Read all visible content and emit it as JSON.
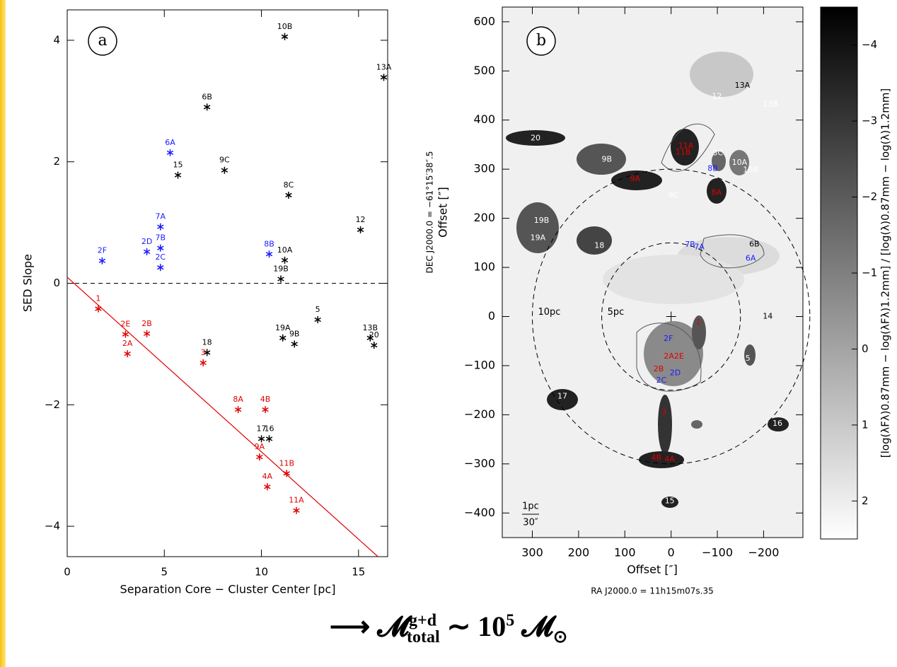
{
  "chart_data": [
    {
      "type": "scatter",
      "panel_label": "a",
      "x_label": "Separation Core − Cluster Center [pc]",
      "y_label": "SED Slope",
      "xlim": [
        0,
        16.5
      ],
      "ylim": [
        -4.5,
        4.5
      ],
      "xticks": [
        0,
        5,
        10,
        15
      ],
      "yticks": [
        {
          "value": -4,
          "label": "−4"
        },
        {
          "value": -2,
          "label": "−2"
        },
        0,
        2,
        4
      ],
      "hline": 0,
      "fit_line": {
        "color": "#e00000",
        "x": [
          0,
          16
        ],
        "y": [
          0.1,
          -4.5
        ]
      },
      "points": [
        {
          "label": "10B",
          "x": 11.2,
          "y": 4.06,
          "color": "#000000"
        },
        {
          "label": "13A",
          "x": 16.3,
          "y": 3.39,
          "color": "#000000"
        },
        {
          "label": "6B",
          "x": 7.2,
          "y": 2.9,
          "color": "#000000"
        },
        {
          "label": "9C",
          "x": 8.1,
          "y": 1.86,
          "color": "#000000"
        },
        {
          "label": "15",
          "x": 5.7,
          "y": 1.78,
          "color": "#000000"
        },
        {
          "label": "8C",
          "x": 11.4,
          "y": 1.45,
          "color": "#000000"
        },
        {
          "label": "12",
          "x": 15.1,
          "y": 0.88,
          "color": "#000000"
        },
        {
          "label": "10A",
          "x": 11.2,
          "y": 0.38,
          "color": "#000000"
        },
        {
          "label": "19B",
          "x": 11.0,
          "y": 0.07,
          "color": "#000000"
        },
        {
          "label": "5",
          "x": 12.9,
          "y": -0.6,
          "color": "#000000"
        },
        {
          "label": "19A",
          "x": 11.1,
          "y": -0.9,
          "color": "#000000"
        },
        {
          "label": "9B",
          "x": 11.7,
          "y": -1.0,
          "color": "#000000"
        },
        {
          "label": "13B",
          "x": 15.6,
          "y": -0.9,
          "color": "#000000"
        },
        {
          "label": "20",
          "x": 15.8,
          "y": -1.02,
          "color": "#000000"
        },
        {
          "label": "18",
          "x": 7.2,
          "y": -1.14,
          "color": "#000000"
        },
        {
          "label": "17",
          "x": 10.0,
          "y": -2.56,
          "color": "#000000"
        },
        {
          "label": "16",
          "x": 10.4,
          "y": -2.56,
          "color": "#000000"
        },
        {
          "label": "6A",
          "x": 5.3,
          "y": 2.15,
          "color": "#1a1aff"
        },
        {
          "label": "7A",
          "x": 4.8,
          "y": 0.93,
          "color": "#1a1aff"
        },
        {
          "label": "2D",
          "x": 4.1,
          "y": 0.52,
          "color": "#1a1aff"
        },
        {
          "label": "7B",
          "x": 4.8,
          "y": 0.58,
          "color": "#1a1aff"
        },
        {
          "label": "2C",
          "x": 4.8,
          "y": 0.26,
          "color": "#1a1aff"
        },
        {
          "label": "8B",
          "x": 10.4,
          "y": 0.48,
          "color": "#1a1aff"
        },
        {
          "label": "2F",
          "x": 1.8,
          "y": 0.37,
          "color": "#1a1aff"
        },
        {
          "label": "1",
          "x": 1.6,
          "y": -0.42,
          "color": "#e00000"
        },
        {
          "label": "2E",
          "x": 3.0,
          "y": -0.84,
          "color": "#e00000"
        },
        {
          "label": "2A",
          "x": 3.1,
          "y": -1.16,
          "color": "#e00000"
        },
        {
          "label": "2B",
          "x": 4.1,
          "y": -0.83,
          "color": "#e00000"
        },
        {
          "label": "3",
          "x": 7.0,
          "y": -1.31,
          "color": "#e00000"
        },
        {
          "label": "8A",
          "x": 8.8,
          "y": -2.08,
          "color": "#e00000"
        },
        {
          "label": "4B",
          "x": 10.2,
          "y": -2.08,
          "color": "#e00000"
        },
        {
          "label": "9A",
          "x": 9.9,
          "y": -2.86,
          "color": "#e00000"
        },
        {
          "label": "11B",
          "x": 11.3,
          "y": -3.13,
          "color": "#e00000"
        },
        {
          "label": "4A",
          "x": 10.3,
          "y": -3.35,
          "color": "#e00000"
        },
        {
          "label": "11A",
          "x": 11.8,
          "y": -3.74,
          "color": "#e00000"
        }
      ]
    },
    {
      "type": "image",
      "panel_label": "b",
      "x_label": "Offset [″]",
      "y_label": "Offset [″]",
      "y_label_2": "DEC J2000.0 = −61°15′38″.5",
      "x_label_2": "RA J2000.0 = 11h15m07s.35",
      "xlim": [
        365,
        -285
      ],
      "ylim": [
        -450,
        630
      ],
      "xticks": [
        300,
        200,
        100,
        0,
        {
          "value": -100,
          "label": "−100"
        },
        {
          "value": -200,
          "label": "−200"
        }
      ],
      "yticks": [
        {
          "value": -400,
          "label": "−400"
        },
        {
          "value": -300,
          "label": "−300"
        },
        {
          "value": -200,
          "label": "−200"
        },
        {
          "value": -100,
          "label": "−100"
        },
        0,
        100,
        200,
        300,
        400,
        500,
        600
      ],
      "circles": [
        {
          "label": "5pc",
          "radius": 150
        },
        {
          "label": "10pc",
          "radius": 300
        }
      ],
      "scale_bar": {
        "top": "1pc",
        "bottom": "30″"
      },
      "sources": [
        {
          "label": "20",
          "x": 293,
          "y": 363,
          "color": "#ffffff"
        },
        {
          "label": "9B",
          "x": 139,
          "y": 320,
          "color": "#ffffff"
        },
        {
          "label": "11A",
          "x": -32,
          "y": 347,
          "color": "#e00000"
        },
        {
          "label": "11B",
          "x": -26,
          "y": 334,
          "color": "#e00000"
        },
        {
          "label": "3C",
          "x": -101,
          "y": 333,
          "color": "#ffffff"
        },
        {
          "label": "8B",
          "x": -90,
          "y": 301,
          "color": "#1a1aff"
        },
        {
          "label": "10A",
          "x": -148,
          "y": 313,
          "color": "#ffffff"
        },
        {
          "label": "10B",
          "x": -172,
          "y": 298,
          "color": "#ffffff"
        },
        {
          "label": "9A",
          "x": 78,
          "y": 280,
          "color": "#e00000"
        },
        {
          "label": "9C",
          "x": -5,
          "y": 246,
          "color": "#ffffff"
        },
        {
          "label": "8A",
          "x": -98,
          "y": 252,
          "color": "#e00000"
        },
        {
          "label": "12",
          "x": -99,
          "y": 448,
          "color": "#ffffff"
        },
        {
          "label": "13A",
          "x": -154,
          "y": 470,
          "color": "#000000"
        },
        {
          "label": "13B",
          "x": -215,
          "y": 432,
          "color": "#ffffff"
        },
        {
          "label": "19B",
          "x": 280,
          "y": 195,
          "color": "#ffffff"
        },
        {
          "label": "19A",
          "x": 288,
          "y": 160,
          "color": "#ffffff"
        },
        {
          "label": "18",
          "x": 155,
          "y": 144,
          "color": "#ffffff"
        },
        {
          "label": "7B",
          "x": -41,
          "y": 146,
          "color": "#1a1aff"
        },
        {
          "label": "7A",
          "x": -61,
          "y": 141,
          "color": "#1a1aff"
        },
        {
          "label": "6A",
          "x": -172,
          "y": 118,
          "color": "#1a1aff"
        },
        {
          "label": "6B",
          "x": -180,
          "y": 147,
          "color": "#000000"
        },
        {
          "label": "2F",
          "x": 6,
          "y": -45,
          "color": "#1a1aff"
        },
        {
          "label": "1",
          "x": -59,
          "y": -12,
          "color": "#e00000"
        },
        {
          "label": "2A2E",
          "x": -6,
          "y": -81,
          "color": "#e00000"
        },
        {
          "label": "2B",
          "x": 27,
          "y": -107,
          "color": "#e00000"
        },
        {
          "label": "2D",
          "x": -9,
          "y": -115,
          "color": "#1a1aff"
        },
        {
          "label": "2C",
          "x": 21,
          "y": -130,
          "color": "#1a1aff"
        },
        {
          "label": "3",
          "x": 15,
          "y": -195,
          "color": "#e00000"
        },
        {
          "label": "4B",
          "x": 32,
          "y": -288,
          "color": "#e00000"
        },
        {
          "label": "4A",
          "x": 3,
          "y": -291,
          "color": "#e00000"
        },
        {
          "label": "5",
          "x": -166,
          "y": -86,
          "color": "#ffffff"
        },
        {
          "label": "14",
          "x": -209,
          "y": 0,
          "color": "#000000"
        },
        {
          "label": "17",
          "x": 235,
          "y": -163,
          "color": "#ffffff"
        },
        {
          "label": "16",
          "x": -230,
          "y": -218,
          "color": "#ffffff"
        },
        {
          "label": "15",
          "x": 3,
          "y": -376,
          "color": "#ffffff"
        }
      ],
      "colorbar": {
        "label": "[log(λFλ)0.87mm − log(λFλ)1.2mm] / [log(λ)0.87mm − log(λ)1.2mm]",
        "lim": [
          -4.5,
          2.5
        ],
        "ticks": [
          {
            "value": -4,
            "label": "−4"
          },
          {
            "value": -3,
            "label": "−3"
          },
          {
            "value": -2,
            "label": "−2"
          },
          {
            "value": -1,
            "label": "−1"
          },
          0,
          1,
          2
        ]
      }
    }
  ],
  "formula": {
    "arrow": "⟶",
    "symbol": "𝓜",
    "sup": "g+d",
    "sub": "total",
    "relation": "∼",
    "base": "10",
    "exponent": "5",
    "symbol_2": "𝓜",
    "sub_2": "⊙"
  }
}
